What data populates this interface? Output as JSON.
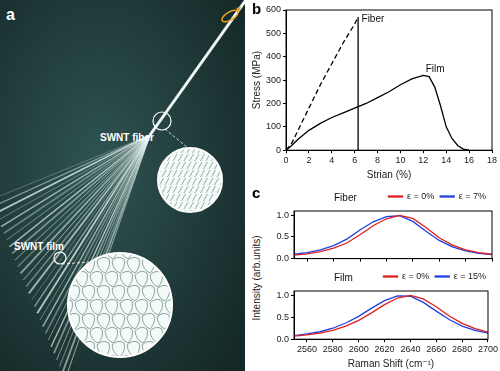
{
  "panel_a": {
    "panel_label": "a",
    "labels": [
      "SWNT fiber",
      "SWNT film"
    ]
  },
  "chart_data": [
    {
      "type": "line",
      "panel_label": "b",
      "x_label": "Strian (%)",
      "y_label": "Stress (MPa)",
      "xlim": [
        0,
        18
      ],
      "xticks": [
        0,
        2,
        4,
        6,
        8,
        10,
        12,
        14,
        16,
        18
      ],
      "ylim": [
        0,
        600
      ],
      "yticks": [
        0,
        100,
        200,
        300,
        400,
        500,
        600
      ],
      "grid": false,
      "annotations": [
        {
          "text": "Fiber",
          "x": 6.6,
          "y": 560
        },
        {
          "text": "Film",
          "x": 12.2,
          "y": 345
        }
      ],
      "series": [
        {
          "name": "Fiber",
          "color": "#000000",
          "line_style": "dashed",
          "x": [
            0,
            0.5,
            1,
            2,
            3,
            4,
            5,
            6,
            6.3
          ],
          "values": [
            0,
            30,
            80,
            180,
            280,
            370,
            460,
            540,
            570
          ]
        },
        {
          "color": "#000000",
          "line_style": "solid",
          "x": [
            6.3,
            6.3
          ],
          "values": [
            570,
            0
          ]
        },
        {
          "name": "Film",
          "color": "#000000",
          "line_style": "solid",
          "x": [
            0,
            0.5,
            1,
            2,
            3,
            4,
            5,
            6,
            7,
            8,
            9,
            10,
            11,
            12,
            12.5,
            13,
            13.5,
            14,
            14.5,
            15,
            15.5,
            16
          ],
          "values": [
            0,
            20,
            45,
            85,
            115,
            140,
            160,
            180,
            200,
            225,
            250,
            280,
            305,
            320,
            315,
            270,
            190,
            100,
            50,
            20,
            5,
            0
          ]
        }
      ]
    },
    {
      "type": "line",
      "panel_label": "c",
      "title": "Fiber",
      "y_label": "Intensity (arb.units)",
      "xlim": [
        2550,
        2700
      ],
      "xticks": [
        2560,
        2580,
        2600,
        2620,
        2640,
        2660,
        2680,
        2700
      ],
      "ylim": [
        0,
        1.1
      ],
      "yticks": [
        {
          "value": 0,
          "label": "0.0"
        },
        {
          "value": 0.5,
          "label": "0.5"
        },
        {
          "value": 1,
          "label": "1.0"
        }
      ],
      "grid": false,
      "legend": "upper right",
      "tick_labels": "y",
      "series": [
        {
          "name": "ε = 0%",
          "color": "#e02020",
          "line_style": "solid",
          "x": [
            2550,
            2560,
            2570,
            2580,
            2590,
            2600,
            2610,
            2620,
            2630,
            2640,
            2650,
            2660,
            2670,
            2680,
            2690,
            2700
          ],
          "values": [
            0.08,
            0.11,
            0.16,
            0.24,
            0.36,
            0.55,
            0.76,
            0.92,
            1.0,
            0.93,
            0.72,
            0.48,
            0.31,
            0.2,
            0.14,
            0.1
          ]
        },
        {
          "name": "ε = 7%",
          "color": "#2040e0",
          "line_style": "solid",
          "x": [
            2550,
            2560,
            2570,
            2580,
            2590,
            2600,
            2610,
            2620,
            2630,
            2640,
            2650,
            2660,
            2670,
            2680,
            2690,
            2700
          ],
          "values": [
            0.1,
            0.14,
            0.2,
            0.3,
            0.45,
            0.66,
            0.85,
            0.97,
            0.99,
            0.86,
            0.63,
            0.42,
            0.27,
            0.18,
            0.12,
            0.09
          ]
        }
      ]
    },
    {
      "type": "line",
      "title": "Film",
      "x_label": "Raman Shift (cm⁻¹)",
      "xlim": [
        2550,
        2700
      ],
      "xticks": [
        2560,
        2580,
        2600,
        2620,
        2640,
        2660,
        2680,
        2700
      ],
      "ylim": [
        0,
        1.1
      ],
      "yticks": [
        {
          "value": 0,
          "label": "0.0"
        },
        {
          "value": 0.5,
          "label": "0.5"
        },
        {
          "value": 1,
          "label": "1.0"
        }
      ],
      "grid": false,
      "legend": "upper right",
      "series": [
        {
          "name": "ε = 0%",
          "color": "#e02020",
          "line_style": "solid",
          "x": [
            2550,
            2560,
            2570,
            2580,
            2590,
            2600,
            2610,
            2620,
            2630,
            2640,
            2650,
            2660,
            2670,
            2680,
            2690,
            2700
          ],
          "values": [
            0.07,
            0.1,
            0.14,
            0.2,
            0.3,
            0.43,
            0.6,
            0.79,
            0.94,
            1.0,
            0.92,
            0.74,
            0.53,
            0.36,
            0.24,
            0.16
          ]
        },
        {
          "name": "ε = 15%",
          "color": "#2040e0",
          "line_style": "solid",
          "x": [
            2550,
            2560,
            2570,
            2580,
            2590,
            2600,
            2610,
            2620,
            2630,
            2640,
            2650,
            2660,
            2670,
            2680,
            2690,
            2700
          ],
          "values": [
            0.08,
            0.12,
            0.17,
            0.25,
            0.37,
            0.52,
            0.71,
            0.88,
            0.99,
            0.98,
            0.84,
            0.64,
            0.45,
            0.3,
            0.2,
            0.14
          ]
        }
      ]
    }
  ]
}
